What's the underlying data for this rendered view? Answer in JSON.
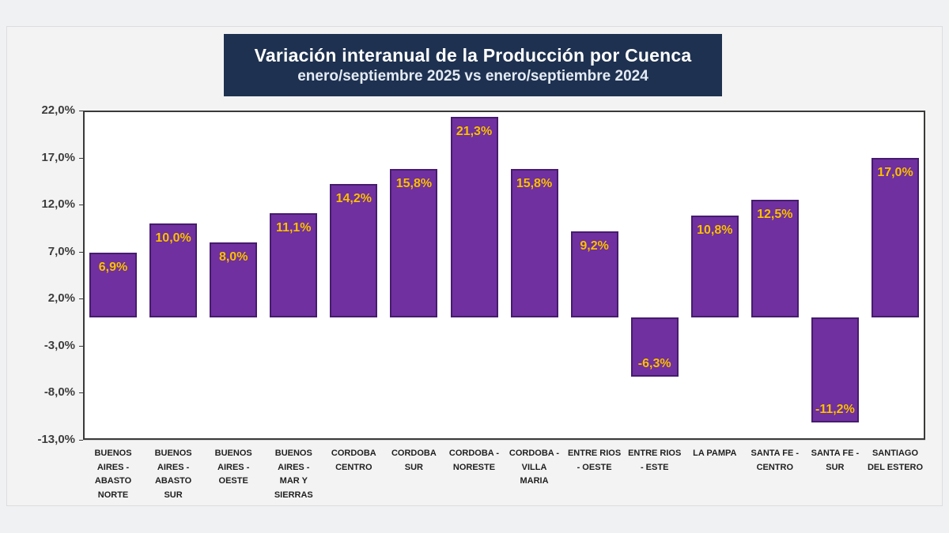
{
  "title": {
    "line1": "Variación interanual de la Producción por Cuenca",
    "line2": "enero/septiembre 2025 vs enero/septiembre 2024",
    "box_color": "#1e3150",
    "text_color": "#ffffff"
  },
  "chart_data": {
    "type": "bar",
    "title": "Variación interanual de la Producción por Cuenca",
    "subtitle": "enero/septiembre 2025 vs enero/septiembre 2024",
    "categories": [
      "BUENOS\nAIRES -\nABASTO\nNORTE",
      "BUENOS\nAIRES -\nABASTO\nSUR",
      "BUENOS\nAIRES -\nOESTE",
      "BUENOS\nAIRES -\nMAR Y\nSIERRAS",
      "CORDOBA\nCENTRO",
      "CORDOBA\nSUR",
      "CORDOBA -\nNORESTE",
      "CORDOBA -\nVILLA\nMARIA",
      "ENTRE RIOS\n- OESTE",
      "ENTRE RIOS\n- ESTE",
      "LA PAMPA",
      "SANTA FE -\nCENTRO",
      "SANTA FE -\nSUR",
      "SANTIAGO\nDEL ESTERO"
    ],
    "values": [
      6.9,
      10.0,
      8.0,
      11.1,
      14.2,
      15.8,
      21.3,
      15.8,
      9.2,
      -6.3,
      10.8,
      12.5,
      -11.2,
      17.0
    ],
    "value_labels": [
      "6,9%",
      "10,0%",
      "8,0%",
      "11,1%",
      "14,2%",
      "15,8%",
      "21,3%",
      "15,8%",
      "9,2%",
      "-6,3%",
      "10,8%",
      "12,5%",
      "-11,2%",
      "17,0%"
    ],
    "yticks": [
      22,
      17,
      12,
      7,
      2,
      -3,
      -8,
      -13
    ],
    "ytick_labels": [
      "22,0%",
      "17,0%",
      "12,0%",
      "7,0%",
      "2,0%",
      "-3,0%",
      "-8,0%",
      "-13,0%"
    ],
    "ylim": [
      -13,
      22
    ],
    "xlabel": "",
    "ylabel": "",
    "grid": "horizontal and vertical light gray",
    "legend": "none",
    "bar_color": "#7030a0",
    "bar_border_color": "#461c6d",
    "value_label_color": "#ffc000"
  }
}
